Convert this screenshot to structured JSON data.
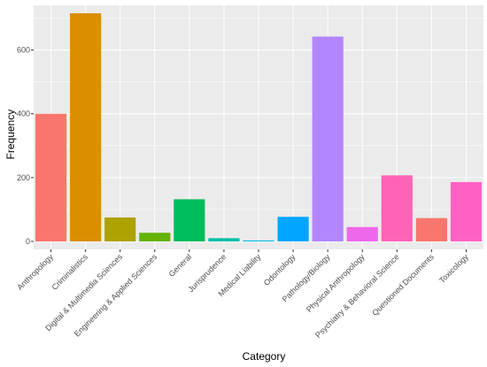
{
  "chart_data": {
    "type": "bar",
    "title": "",
    "xlabel": "Category",
    "ylabel": "Frequency",
    "ylim": [
      -25,
      740
    ],
    "yticks": [
      0,
      200,
      400,
      600
    ],
    "grid": true,
    "legend": "none",
    "panel_background": "#EBEBEB",
    "grid_color": "#FFFFFF",
    "categories": [
      "Anthropology",
      "Criminalistics",
      "Digital & Multimedia Sciences",
      "Engineering & Applied Sciences",
      "General",
      "Jurisprudence",
      "Medical Liability",
      "Odontology",
      "Pathology/Biology",
      "Physical Anthropology",
      "Psychiatry & Behavioral Science",
      "Questioned Documents",
      "Toxicology"
    ],
    "values": [
      400,
      715,
      75,
      27,
      132,
      10,
      3,
      77,
      642,
      45,
      207,
      73,
      186
    ],
    "colors": [
      "#F8766D",
      "#DB8E00",
      "#AEA200",
      "#64B200",
      "#00BD5C",
      "#00C1A7",
      "#00BADE",
      "#00A6FF",
      "#B385FF",
      "#EF67EB",
      "#FF63B6",
      "#F8766D",
      "#FF61C3"
    ]
  }
}
